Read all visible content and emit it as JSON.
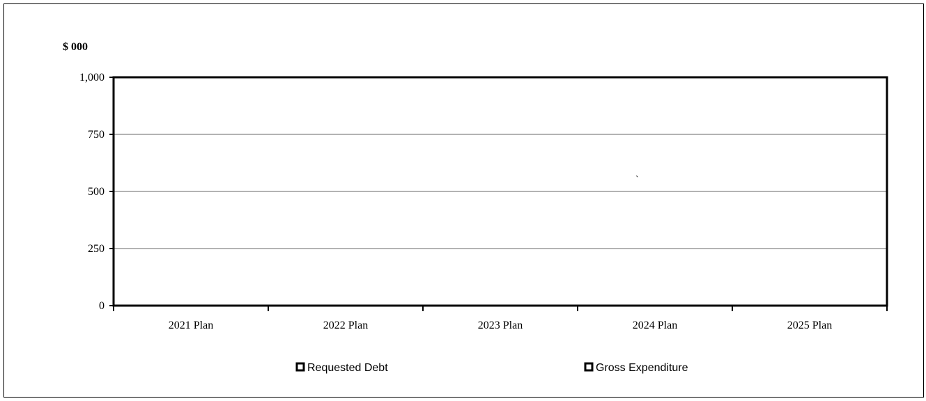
{
  "chart_data": {
    "type": "bar",
    "title": "",
    "ylabel": "$ 000",
    "xlabel": "",
    "categories": [
      "2021 Plan",
      "2022 Plan",
      "2023 Plan",
      "2024 Plan",
      "2025 Plan"
    ],
    "series": [
      {
        "name": "Requested Debt",
        "values": [
          0,
          0,
          0,
          0,
          0
        ],
        "color": "#000000"
      },
      {
        "name": "Gross Expenditure",
        "values": [
          0,
          0,
          0,
          0,
          0
        ],
        "color": "#000000"
      }
    ],
    "ylim": [
      0,
      1000
    ],
    "yticks": [
      0,
      250,
      500,
      750,
      1000
    ],
    "ytick_labels": [
      "0",
      "250",
      "500",
      "750",
      "1,000"
    ],
    "grid": true,
    "legend_position": "bottom",
    "annotations": [
      "`"
    ]
  }
}
